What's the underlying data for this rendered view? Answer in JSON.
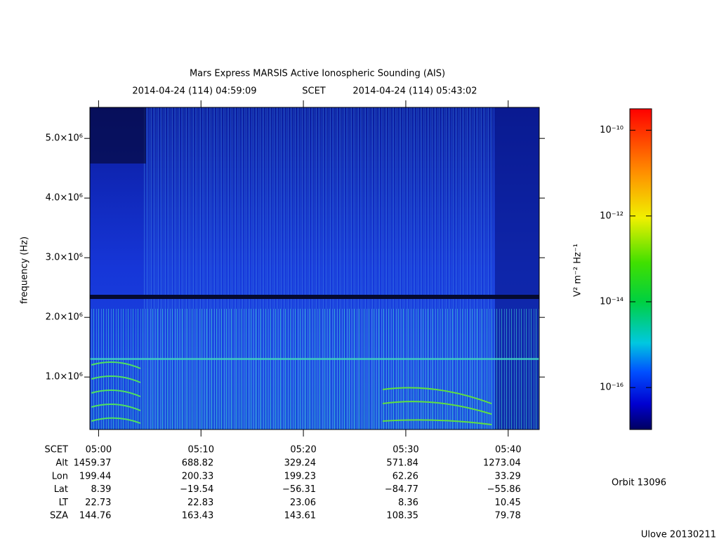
{
  "chart_data": {
    "type": "spectrogram",
    "title": "Mars Express MARSIS Active Ionospheric Sounding (AIS)",
    "time_range": {
      "start": "2014-04-24 (114) 04:59:09",
      "label": "SCET",
      "end": "2014-04-24 (114) 05:43:02"
    },
    "ylabel": "frequency (Hz)",
    "ylim": [
      120000,
      5520000
    ],
    "yticks": [
      {
        "value": 1000000,
        "label": "1.0×10⁶"
      },
      {
        "value": 2000000,
        "label": "2.0×10⁶"
      },
      {
        "value": 3000000,
        "label": "3.0×10⁶"
      },
      {
        "value": 4000000,
        "label": "4.0×10⁶"
      },
      {
        "value": 5000000,
        "label": "5.0×10⁶"
      }
    ],
    "xlim": [
      299.15,
      343.033
    ],
    "xticks": [
      {
        "value": 300,
        "label": "05:00"
      },
      {
        "value": 310,
        "label": "05:10"
      },
      {
        "value": 320,
        "label": "05:20"
      },
      {
        "value": 330,
        "label": "05:30"
      },
      {
        "value": 340,
        "label": "05:40"
      }
    ],
    "ephemeris": {
      "time_label": "SCET",
      "rows": [
        {
          "name": "Alt",
          "values": [
            "1459.37",
            "688.82",
            "329.24",
            "571.84",
            "1273.04"
          ]
        },
        {
          "name": "Lon",
          "values": [
            "199.44",
            "200.33",
            "199.23",
            "62.26",
            "33.29"
          ]
        },
        {
          "name": "Lat",
          "values": [
            "8.39",
            "−19.54",
            "−56.31",
            "−84.77",
            "−55.86"
          ]
        },
        {
          "name": "LT",
          "values": [
            "22.73",
            "22.83",
            "23.06",
            "8.36",
            "10.45"
          ]
        },
        {
          "name": "SZA",
          "values": [
            "144.76",
            "163.43",
            "143.61",
            "108.35",
            "79.78"
          ]
        }
      ]
    },
    "colorbar": {
      "label": "V² m⁻² Hz⁻¹",
      "log": true,
      "lim": [
        1.05e-17,
        3.16e-10
      ],
      "ticks": [
        {
          "value": 1e-10,
          "label": "10⁻¹⁰"
        },
        {
          "value": 1e-12,
          "label": "10⁻¹²"
        },
        {
          "value": 1e-14,
          "label": "10⁻¹⁴"
        },
        {
          "value": 1e-16,
          "label": "10⁻¹⁶"
        }
      ]
    },
    "orbit_label": "Orbit 13096",
    "footer": "Ulove 20130211"
  }
}
